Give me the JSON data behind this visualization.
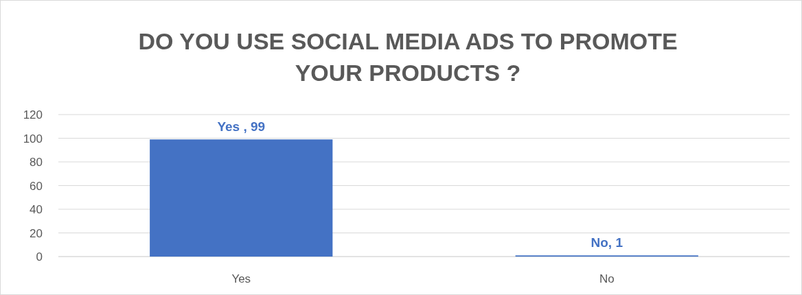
{
  "chart_data": {
    "type": "bar",
    "title": "DO YOU USE SOCIAL MEDIA ADS TO PROMOTE YOUR PRODUCTS ?",
    "categories": [
      "Yes",
      "No"
    ],
    "values": [
      99,
      1
    ],
    "value_labels": [
      "Yes , 99",
      "No, 1"
    ],
    "color": "#4472c4",
    "ylim": [
      0,
      120
    ],
    "yticks": [
      0,
      20,
      40,
      60,
      80,
      100,
      120
    ],
    "grid": "y"
  }
}
